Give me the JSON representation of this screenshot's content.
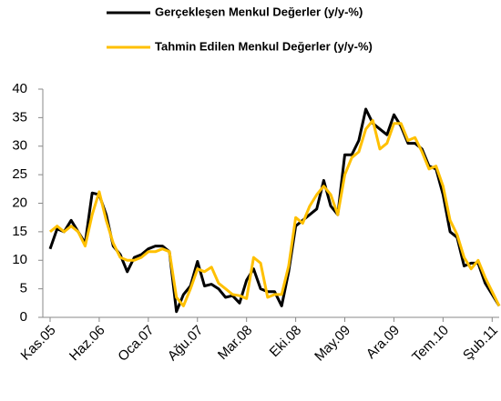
{
  "chart_data": {
    "type": "line",
    "categories": [
      "Kas.05",
      null,
      null,
      null,
      null,
      null,
      null,
      "Haz.06",
      null,
      null,
      null,
      null,
      null,
      null,
      "Oca.07",
      null,
      null,
      null,
      null,
      null,
      null,
      "Ağu.07",
      null,
      null,
      null,
      null,
      null,
      null,
      "Mar.08",
      null,
      null,
      null,
      null,
      null,
      null,
      "Eki.08",
      null,
      null,
      null,
      null,
      null,
      null,
      "May.09",
      null,
      null,
      null,
      null,
      null,
      null,
      "Ara.09",
      null,
      null,
      null,
      null,
      null,
      null,
      "Tem.10",
      null,
      null,
      null,
      null,
      null,
      null,
      "Şub.11",
      null
    ],
    "series": [
      {
        "name": "Gerçekleşen Menkul Değerler (y/y-%)",
        "color": "#000000",
        "values": [
          12,
          15.5,
          15,
          17,
          15,
          13,
          21.8,
          21.5,
          18,
          12.5,
          11,
          8,
          10.5,
          11,
          12,
          12.5,
          12.5,
          11.5,
          1,
          4,
          5.5,
          9.8,
          5.5,
          5.8,
          5,
          3.5,
          3.8,
          2.5,
          6.5,
          8.5,
          5,
          4.5,
          4.5,
          2,
          8,
          16,
          17,
          18,
          19,
          24,
          19.5,
          18,
          28.5,
          28.5,
          31,
          36.5,
          34,
          33,
          32,
          35.5,
          33.5,
          30.5,
          30.5,
          29.5,
          26.5,
          26,
          21.5,
          15,
          14,
          9,
          9.5,
          9.5,
          6,
          4,
          2
        ]
      },
      {
        "name": "Tahmin Edilen Menkul Değerler (y/y-%)",
        "color": "#ffc000",
        "values": [
          15,
          16,
          15,
          16,
          15,
          12.5,
          18,
          22,
          17,
          13,
          10.5,
          10,
          10,
          10.5,
          11.5,
          11.5,
          12,
          11.5,
          3.5,
          2,
          5,
          8.5,
          8,
          8.8,
          6,
          5,
          4,
          3.8,
          3.3,
          10.5,
          9.5,
          3.5,
          4,
          4,
          9,
          17.5,
          16.5,
          19.5,
          21.5,
          23,
          21.5,
          18,
          25,
          28,
          29,
          33,
          34.5,
          29.5,
          30.5,
          34,
          34,
          31,
          31.5,
          29,
          26,
          26.5,
          23,
          17,
          14.5,
          10.5,
          8.5,
          10,
          7,
          4.5,
          2
        ]
      }
    ],
    "ylim": [
      0,
      40
    ],
    "yticks": [
      0,
      5,
      10,
      15,
      20,
      25,
      30,
      35,
      40
    ]
  }
}
